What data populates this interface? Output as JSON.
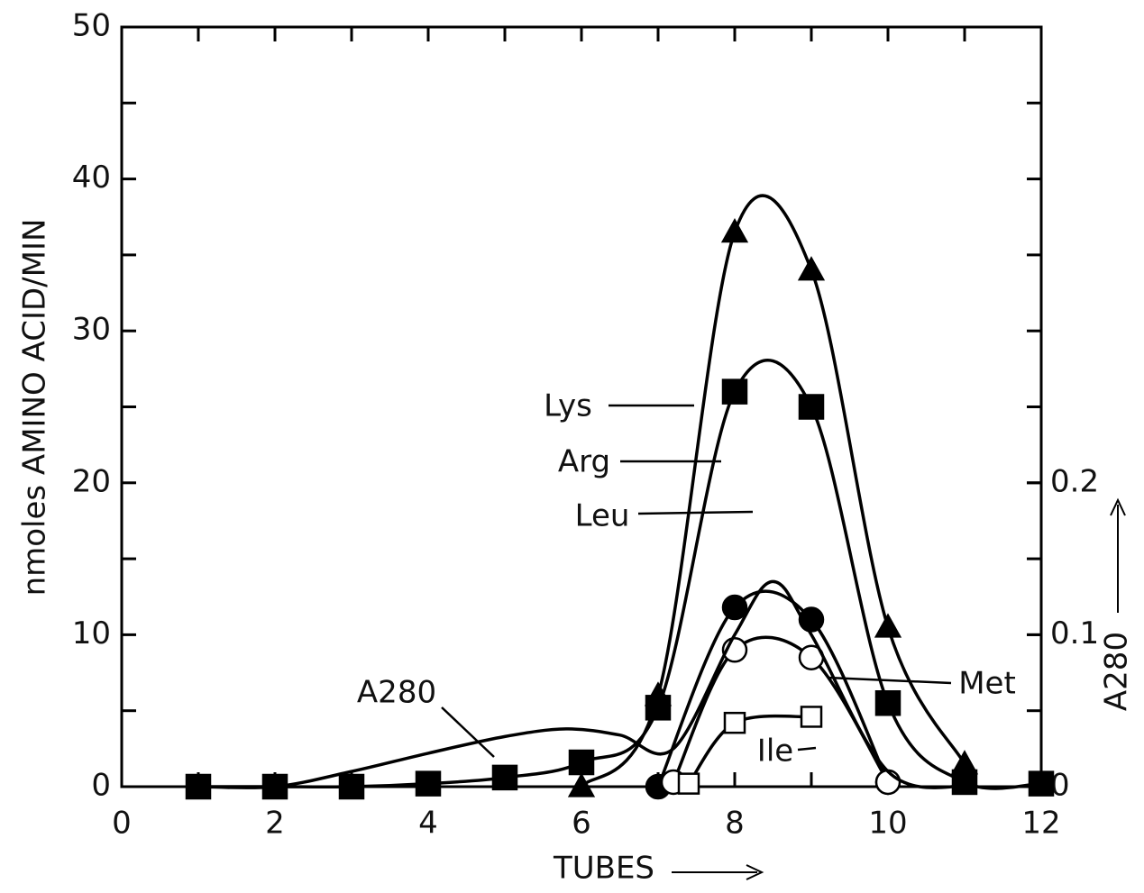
{
  "chart_data": {
    "type": "line",
    "x_label": "TUBES",
    "y_label": "nmoles AMINO ACID/MIN",
    "y2_label": "A280",
    "xlim": [
      0,
      12
    ],
    "xticks": [
      0,
      2,
      4,
      6,
      8,
      10,
      12
    ],
    "ylim": [
      0,
      50
    ],
    "yticks": [
      0,
      10,
      20,
      30,
      40,
      50
    ],
    "y2lim": [
      0,
      0.5
    ],
    "y2ticks": [
      0,
      0.1,
      0.2
    ],
    "series": [
      {
        "name": "Lys",
        "color": "#000000",
        "marker": "triangle",
        "x": [
          6,
          7,
          8,
          9,
          10,
          11
        ],
        "values": [
          0,
          6,
          36.5,
          34,
          10.5,
          1.5
        ]
      },
      {
        "name": "Arg",
        "color": "#000000",
        "marker": "square",
        "x": [
          1,
          2,
          3,
          4,
          5,
          6,
          7,
          8,
          9,
          10,
          11,
          12
        ],
        "values": [
          0,
          0,
          0,
          0.2,
          0.6,
          1.6,
          5.2,
          26,
          25,
          5.5,
          0.3,
          0.2
        ]
      },
      {
        "name": "Leu",
        "color": "#000000",
        "marker": "circle",
        "x": [
          7,
          8,
          9,
          10
        ],
        "values": [
          0,
          11.8,
          11,
          0.3
        ]
      },
      {
        "name": "Met",
        "color": "#000000",
        "marker": "open-circle",
        "x": [
          7.2,
          8,
          9,
          10
        ],
        "values": [
          0.3,
          9,
          8.5,
          0.3
        ]
      },
      {
        "name": "Ile",
        "color": "#000000",
        "marker": "open-square",
        "x": [
          7.4,
          8,
          9
        ],
        "values": [
          0.2,
          4.2,
          4.6
        ]
      },
      {
        "name": "A280",
        "color": "#000000",
        "marker": "none",
        "axis": "y2",
        "x": [
          1,
          2,
          3,
          4,
          5,
          5.8,
          6.5,
          7.2,
          8,
          8.5,
          9,
          10,
          11
        ],
        "values": [
          0,
          0,
          0.01,
          0.022,
          0.033,
          0.038,
          0.034,
          0.025,
          0.1,
          0.135,
          0.1,
          0.01,
          0
        ]
      }
    ]
  }
}
